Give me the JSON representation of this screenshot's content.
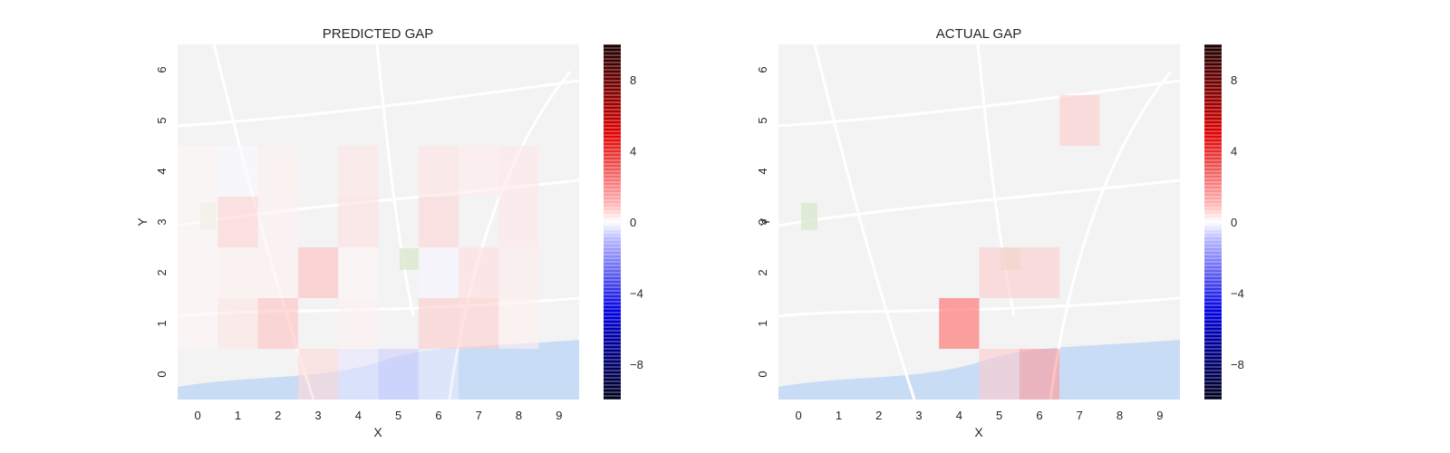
{
  "colors": {
    "positive": "#ff0000",
    "negative": "#0000ff",
    "neutral": "#ffffff",
    "water": "#c9dcf5",
    "land": "#f3f3f3",
    "road": "#ffffff"
  },
  "chart_data": [
    {
      "type": "heatmap",
      "title": "PREDICTED GAP",
      "xlabel": "X",
      "ylabel": "Y",
      "x_ticks": [
        "0",
        "1",
        "2",
        "3",
        "4",
        "5",
        "6",
        "7",
        "8",
        "9"
      ],
      "y_ticks": [
        "0",
        "1",
        "2",
        "3",
        "4",
        "5",
        "6"
      ],
      "colorbar": {
        "ticks": [
          "8",
          "4",
          "0",
          "−4",
          "−8"
        ],
        "tick_values": [
          8,
          4,
          0,
          -4,
          -8
        ],
        "range": [
          -10,
          10
        ],
        "cmap": "seismic"
      },
      "cells": [
        {
          "x": 0,
          "y": 4,
          "value": 0.3
        },
        {
          "x": 1,
          "y": 4,
          "value": -0.2
        },
        {
          "x": 2,
          "y": 4,
          "value": 0.6
        },
        {
          "x": 4,
          "y": 4,
          "value": 1.0
        },
        {
          "x": 6,
          "y": 4,
          "value": 1.1
        },
        {
          "x": 7,
          "y": 4,
          "value": 0.8
        },
        {
          "x": 8,
          "y": 4,
          "value": 0.9
        },
        {
          "x": 0,
          "y": 3,
          "value": 0.3
        },
        {
          "x": 1,
          "y": 3,
          "value": 1.7
        },
        {
          "x": 2,
          "y": 3,
          "value": 0.5
        },
        {
          "x": 4,
          "y": 3,
          "value": 1.2
        },
        {
          "x": 6,
          "y": 3,
          "value": 1.6
        },
        {
          "x": 8,
          "y": 3,
          "value": 0.9
        },
        {
          "x": 0,
          "y": 2,
          "value": 0.4
        },
        {
          "x": 1,
          "y": 2,
          "value": 0.6
        },
        {
          "x": 2,
          "y": 2,
          "value": 0.5
        },
        {
          "x": 3,
          "y": 2,
          "value": 2.5
        },
        {
          "x": 4,
          "y": 2,
          "value": 0.4
        },
        {
          "x": 6,
          "y": 2,
          "value": -0.4
        },
        {
          "x": 7,
          "y": 2,
          "value": 1.3
        },
        {
          "x": 8,
          "y": 2,
          "value": 0.7
        },
        {
          "x": 0,
          "y": 1,
          "value": 0.4
        },
        {
          "x": 1,
          "y": 1,
          "value": 1.0
        },
        {
          "x": 2,
          "y": 1,
          "value": 2.4
        },
        {
          "x": 4,
          "y": 1,
          "value": 0.5
        },
        {
          "x": 6,
          "y": 1,
          "value": 2.0
        },
        {
          "x": 7,
          "y": 1,
          "value": 1.9
        },
        {
          "x": 8,
          "y": 1,
          "value": 0.6
        },
        {
          "x": 3,
          "y": 0,
          "value": 1.5
        },
        {
          "x": 4,
          "y": 0,
          "value": -1.0
        },
        {
          "x": 5,
          "y": 0,
          "value": -1.9
        },
        {
          "x": 6,
          "y": 0,
          "value": -0.8
        }
      ]
    },
    {
      "type": "heatmap",
      "title": "ACTUAL GAP",
      "xlabel": "X",
      "ylabel": "Y",
      "x_ticks": [
        "0",
        "1",
        "2",
        "3",
        "4",
        "5",
        "6",
        "7",
        "8",
        "9"
      ],
      "y_ticks": [
        "0",
        "1",
        "2",
        "3",
        "4",
        "5",
        "6"
      ],
      "colorbar": {
        "ticks": [
          "8",
          "4",
          "0",
          "−4",
          "−8"
        ],
        "tick_values": [
          8,
          4,
          0,
          -4,
          -8
        ],
        "range": [
          -10,
          10
        ],
        "cmap": "seismic"
      },
      "cells": [
        {
          "x": 7,
          "y": 5,
          "value": 2.0
        },
        {
          "x": 5,
          "y": 2,
          "value": 2.0
        },
        {
          "x": 6,
          "y": 2,
          "value": 2.0
        },
        {
          "x": 4,
          "y": 1,
          "value": 6.0
        },
        {
          "x": 5,
          "y": 0,
          "value": 2.0
        },
        {
          "x": 6,
          "y": 0,
          "value": 4.0
        }
      ]
    }
  ]
}
